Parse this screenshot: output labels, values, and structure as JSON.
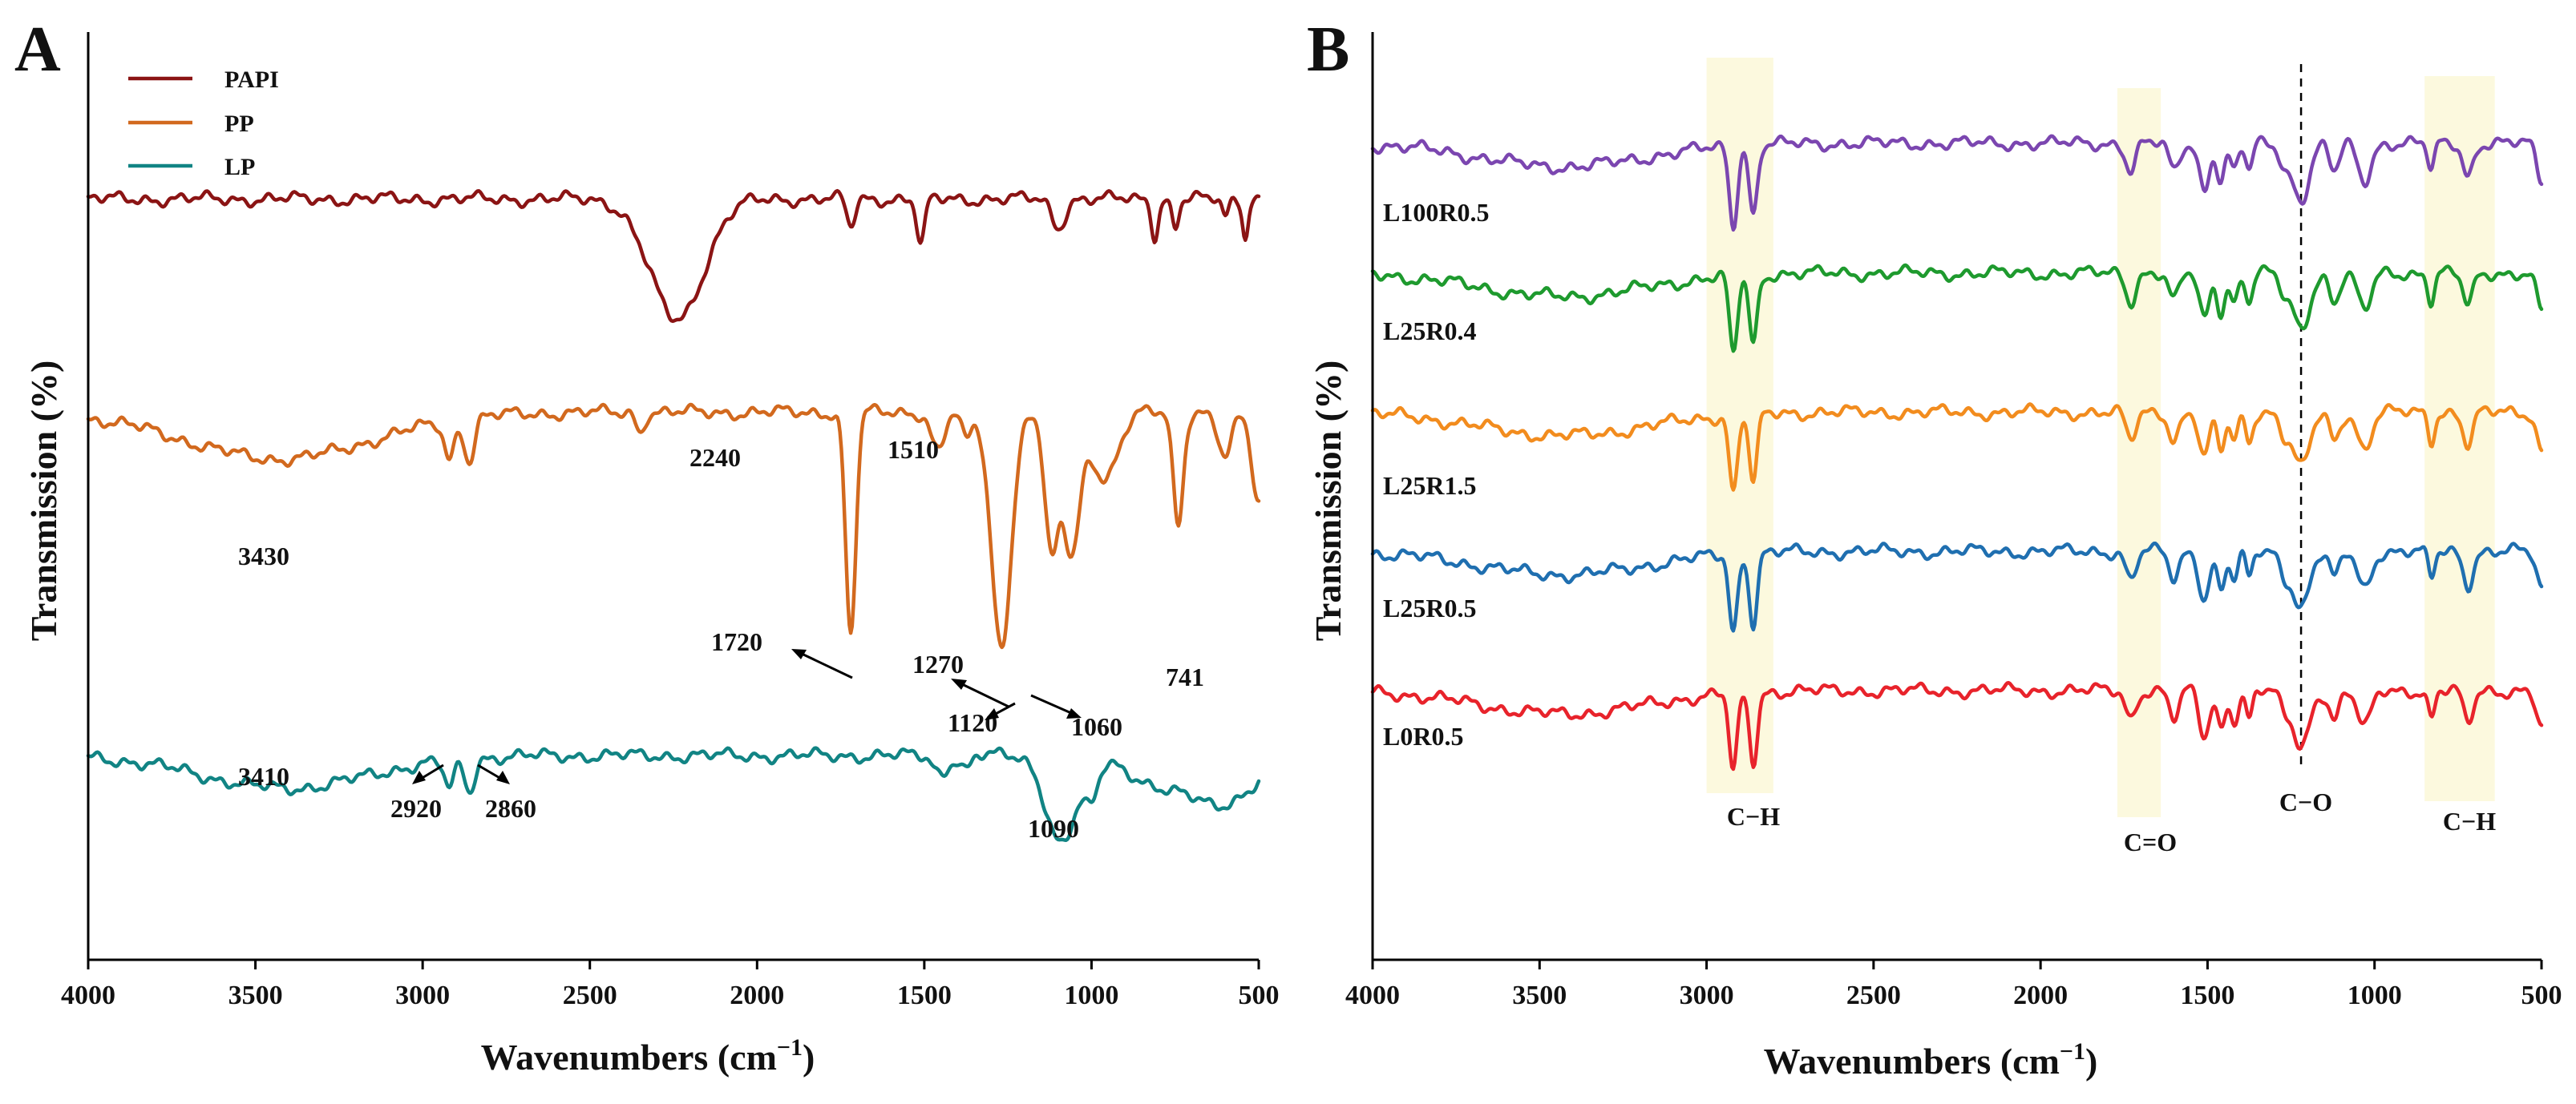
{
  "chart_data": [
    {
      "panel": "A",
      "type": "line",
      "xlabel_main": "Wavenumbers (cm",
      "xlabel_sup": "−1",
      "xlabel_close": ")",
      "ylabel": "Transmission (%)",
      "xlim": [
        4000,
        500
      ],
      "x_reversed": true,
      "xticks": [
        4000,
        3500,
        3000,
        2500,
        2000,
        1500,
        1000,
        500
      ],
      "y_ticks_shown": false,
      "legend_position": "top-left",
      "series": [
        {
          "name": "PAPI",
          "color": "#8b1414",
          "baseline": 0.18,
          "bands": [
            [
              2240,
              0.13,
              80
            ],
            [
              1510,
              0.05,
              12
            ],
            [
              1720,
              0.03,
              12
            ],
            [
              1100,
              0.03,
              20
            ],
            [
              810,
              0.04,
              10
            ],
            [
              750,
              0.03,
              10
            ],
            [
              600,
              0.02,
              10
            ],
            [
              540,
              0.04,
              8
            ]
          ]
        },
        {
          "name": "PP",
          "color": "#d2691e",
          "baseline": 0.41,
          "bands": [
            [
              3430,
              0.05,
              280
            ],
            [
              2920,
              0.04,
              15
            ],
            [
              2860,
              0.045,
              15
            ],
            [
              2350,
              0.02,
              12
            ],
            [
              1720,
              0.24,
              15
            ],
            [
              1460,
              0.04,
              20
            ],
            [
              1375,
              0.03,
              15
            ],
            [
              1270,
              0.25,
              30
            ],
            [
              1120,
              0.15,
              20
            ],
            [
              1060,
              0.15,
              25
            ],
            [
              960,
              0.07,
              40
            ],
            [
              741,
              0.12,
              15
            ],
            [
              600,
              0.05,
              20
            ],
            [
              500,
              0.1,
              20
            ]
          ]
        },
        {
          "name": "LP",
          "color": "#118484",
          "baseline": 0.78,
          "bands": [
            [
              3410,
              0.035,
              250
            ],
            [
              2920,
              0.03,
              15
            ],
            [
              2860,
              0.035,
              15
            ],
            [
              1450,
              0.02,
              20
            ],
            [
              1375,
              0.015,
              15
            ],
            [
              1090,
              0.095,
              45
            ],
            [
              1000,
              0.04,
              20
            ],
            [
              800,
              0.03,
              80
            ],
            [
              600,
              0.05,
              100
            ]
          ]
        }
      ],
      "annotations": [
        {
          "text": "2240",
          "x": 2240
        },
        {
          "text": "1510",
          "x": 1510
        },
        {
          "text": "3430",
          "x": 3430
        },
        {
          "text": "1720",
          "x": 1720
        },
        {
          "text": "1270",
          "x": 1270
        },
        {
          "text": "1120",
          "x": 1120
        },
        {
          "text": "1060",
          "x": 1060
        },
        {
          "text": "741",
          "x": 741
        },
        {
          "text": "3410",
          "x": 3410
        },
        {
          "text": "2920",
          "x": 2920
        },
        {
          "text": "2860",
          "x": 2860
        },
        {
          "text": "1090",
          "x": 1090
        }
      ]
    },
    {
      "panel": "B",
      "type": "line",
      "xlabel_main": "Wavenumbers (cm",
      "xlabel_sup": "−1",
      "xlabel_close": ")",
      "ylabel": "Transmission (%)",
      "xlim": [
        4000,
        500
      ],
      "x_reversed": true,
      "xticks": [
        4000,
        3500,
        3000,
        2500,
        2000,
        1500,
        1000,
        500
      ],
      "y_ticks_shown": false,
      "highlight_bands": [
        {
          "label": "C−H",
          "from": 3000,
          "to": 2800
        },
        {
          "label": "C=O",
          "from": 1770,
          "to": 1640
        },
        {
          "label": "C−H",
          "from": 850,
          "to": 640
        }
      ],
      "reference_line": {
        "label": "C−O",
        "x": 1220
      },
      "series": [
        {
          "name": "L100R0.5",
          "color": "#7b46b0",
          "baseline": 0.12
        },
        {
          "name": "L25R0.4",
          "color": "#1e9a2e",
          "baseline": 0.26
        },
        {
          "name": "L25R1.5",
          "color": "#f28c1e",
          "baseline": 0.41
        },
        {
          "name": "L25R0.5",
          "color": "#1f6fb0",
          "baseline": 0.56
        },
        {
          "name": "L0R0.5",
          "color": "#e8232b",
          "baseline": 0.71
        }
      ],
      "common_bands": [
        [
          3430,
          0.025,
          250
        ],
        [
          2920,
          0.085,
          12
        ],
        [
          2860,
          0.075,
          12
        ],
        [
          1730,
          0.03,
          15
        ],
        [
          1600,
          0.03,
          15
        ],
        [
          1510,
          0.05,
          15
        ],
        [
          1460,
          0.04,
          12
        ],
        [
          1420,
          0.03,
          12
        ],
        [
          1375,
          0.03,
          10
        ],
        [
          1270,
          0.02,
          15
        ],
        [
          1220,
          0.06,
          25
        ],
        [
          1120,
          0.03,
          15
        ],
        [
          1030,
          0.04,
          20
        ],
        [
          830,
          0.03,
          10
        ],
        [
          720,
          0.035,
          15
        ],
        [
          500,
          0.04,
          15
        ]
      ]
    }
  ]
}
